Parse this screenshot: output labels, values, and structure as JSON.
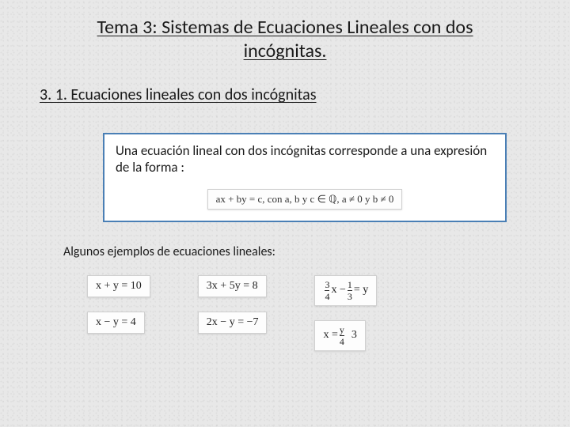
{
  "title": "Tema 3: Sistemas de Ecuaciones Lineales con dos incógnitas.",
  "subtitle": "3. 1.  Ecuaciones lineales con dos incógnitas",
  "definition": "Una ecuación lineal con dos incógnitas corresponde a una expresión de la forma :",
  "formula": "ax + by = c, con a, b y c ∈ ℚ, a ≠ 0 y b ≠ 0",
  "examples_label": "Algunos ejemplos de ecuaciones lineales:",
  "examples": {
    "col1": [
      {
        "html": "x + y = 10"
      },
      {
        "html": "x − y = 4"
      }
    ],
    "col2": [
      {
        "html": "3x + 5y = 8"
      },
      {
        "html": "2x − y = −7"
      }
    ],
    "col3": [
      {
        "frac1_num": "3",
        "frac1_den": "4",
        "mid": "x −",
        "frac2_num": "1",
        "frac2_den": "3",
        "tail": "= y"
      },
      {
        "lead": "x =",
        "frac_num": "y",
        "frac_den": "4",
        "tail2": "  3"
      }
    ]
  },
  "colors": {
    "background": "#e8e8e8",
    "text": "#1a1a1a",
    "box_border": "#4a7fb5",
    "box_bg": "#ffffff",
    "eq_bg": "#fdfdfd",
    "eq_border": "#d0d0d0"
  }
}
